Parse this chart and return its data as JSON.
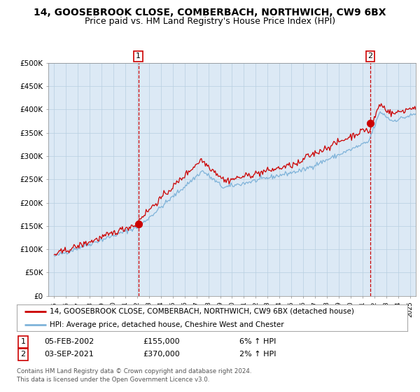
{
  "title": "14, GOOSEBROOK CLOSE, COMBERBACH, NORTHWICH, CW9 6BX",
  "subtitle": "Price paid vs. HM Land Registry's House Price Index (HPI)",
  "bg_color": "#dce9f5",
  "plot_bg_color": "#dce9f5",
  "fig_bg_color": "#ffffff",
  "red_line_color": "#cc0000",
  "blue_line_color": "#7fb3d9",
  "ylim": [
    0,
    500000
  ],
  "yticks": [
    0,
    50000,
    100000,
    150000,
    200000,
    250000,
    300000,
    350000,
    400000,
    450000,
    500000
  ],
  "ytick_labels": [
    "£0",
    "£50K",
    "£100K",
    "£150K",
    "£200K",
    "£250K",
    "£300K",
    "£350K",
    "£400K",
    "£450K",
    "£500K"
  ],
  "xlim": [
    1994.5,
    2025.5
  ],
  "point1": {
    "year": 2002.09,
    "value": 155000,
    "label": "1"
  },
  "point2": {
    "year": 2021.67,
    "value": 370000,
    "label": "2"
  },
  "legend_red": "14, GOOSEBROOK CLOSE, COMBERBACH, NORTHWICH, CW9 6BX (detached house)",
  "legend_blue": "HPI: Average price, detached house, Cheshire West and Chester",
  "annotation1": [
    "1",
    "05-FEB-2002",
    "£155,000",
    "6% ↑ HPI"
  ],
  "annotation2": [
    "2",
    "03-SEP-2021",
    "£370,000",
    "2% ↑ HPI"
  ],
  "footer": "Contains HM Land Registry data © Crown copyright and database right 2024.\nThis data is licensed under the Open Government Licence v3.0.",
  "title_fontsize": 10,
  "subtitle_fontsize": 9
}
